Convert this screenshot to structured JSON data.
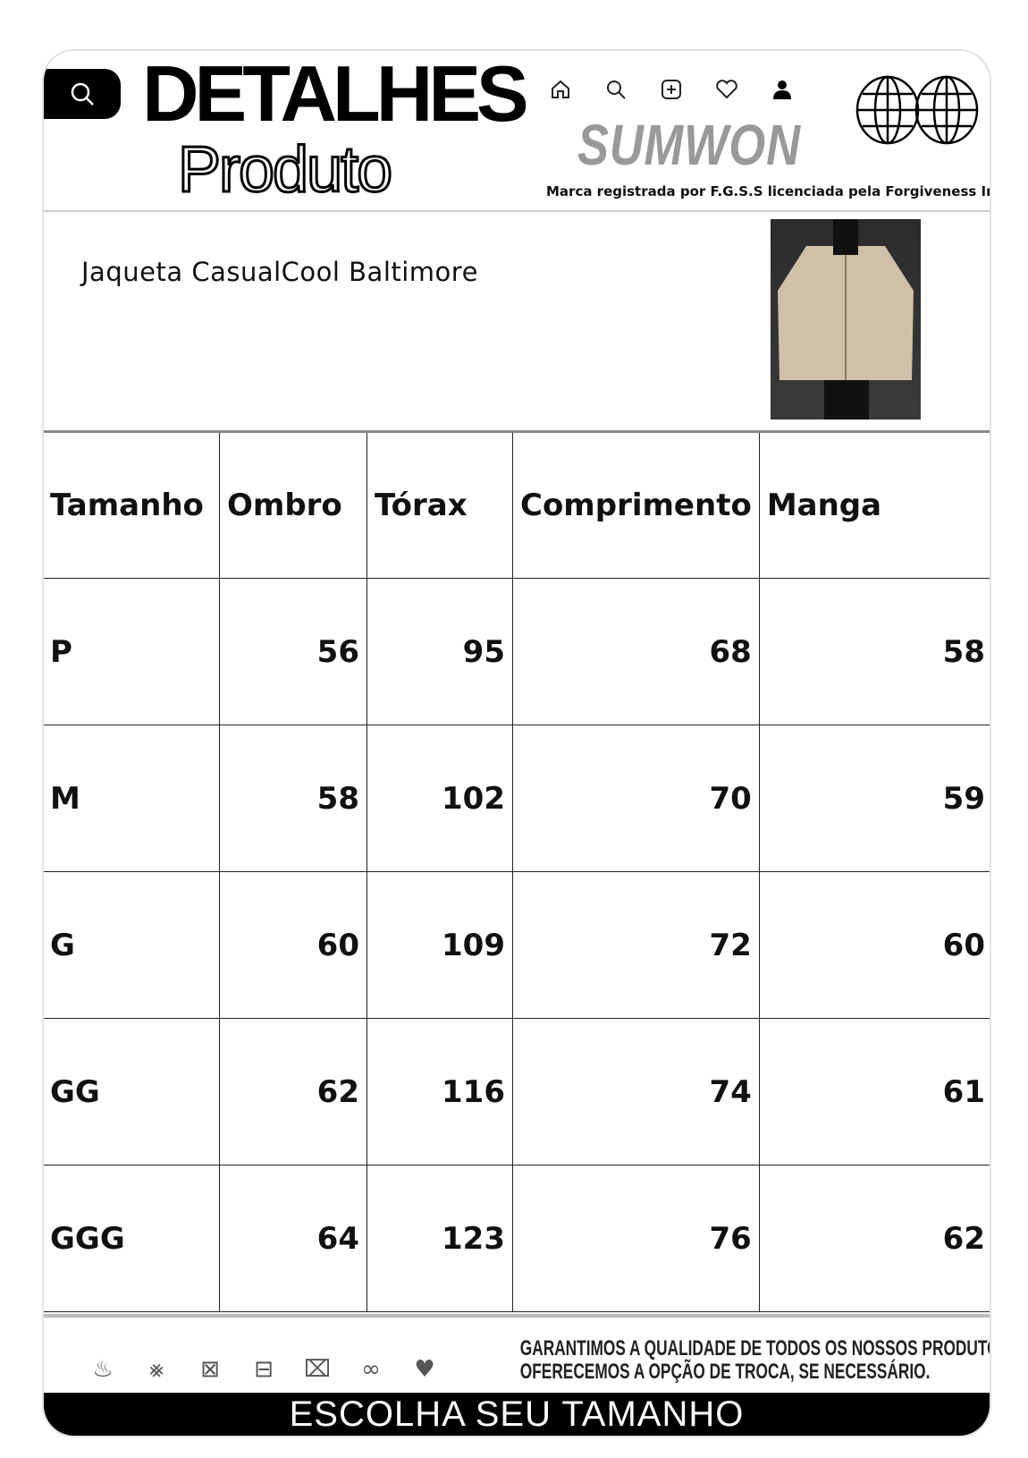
{
  "header": {
    "title_line1": "DETALHES",
    "title_line2": "Produto",
    "brand": "SUMWON",
    "tagline": "Marca registrada por F.G.S.S licenciada pela Forgiveness Inc",
    "nav_icons": [
      "home-icon",
      "search-icon",
      "add-icon",
      "heart-icon",
      "user-icon"
    ]
  },
  "product": {
    "name": "Jaqueta CasualCool Baltimore"
  },
  "table": {
    "headers": [
      "Tamanho",
      "Ombro",
      "Tórax",
      "Comprimento",
      "Manga"
    ],
    "rows": [
      [
        "P",
        "56",
        "95",
        "68",
        "58"
      ],
      [
        "M",
        "58",
        "102",
        "70",
        "59"
      ],
      [
        "G",
        "60",
        "109",
        "72",
        "60"
      ],
      [
        "GG",
        "62",
        "116",
        "74",
        "61"
      ],
      [
        "GGG",
        "64",
        "123",
        "76",
        "62"
      ]
    ]
  },
  "footer": {
    "guarantee_line1": "GARANTIMOS A QUALIDADE DE TODOS OS NOSSOS PRODUTOS E",
    "guarantee_line2": "OFERECEMOS A OPÇÃO DE TROCA, SE NECESSÁRIO.",
    "cta": "ESCOLHA SEU TAMANHO",
    "care_icons": [
      "wash-30-icon",
      "no-bleach-icon",
      "no-tumble-dry-icon",
      "dry-flat-icon",
      "no-iron-icon",
      "no-dry-clean-icon",
      "hand-wash-icon"
    ]
  }
}
